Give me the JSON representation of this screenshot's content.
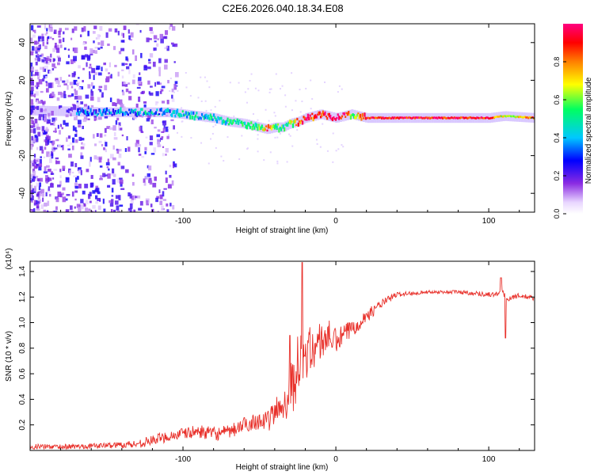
{
  "title": "C2E6.2026.040.18.34.E08",
  "colors": {
    "snr_line": "#e8302a",
    "frame": "#000000"
  },
  "chart_data": [
    {
      "type": "heatmap",
      "name": "spectrogram",
      "xlabel": "Height of straight line (km)",
      "ylabel": "Frequency (Hz)",
      "xlim": [
        -200,
        130
      ],
      "ylim": [
        -50,
        50
      ],
      "xticks": [
        -100,
        0,
        100
      ],
      "xtick_labels": [
        "-100",
        "0",
        "100"
      ],
      "yticks": [
        -40,
        -20,
        0,
        20,
        40
      ],
      "ytick_labels": [
        "-40",
        "-20",
        "0",
        "20",
        "40"
      ],
      "colorbar": {
        "label": "Normalized spectral amplitude",
        "range": [
          0,
          1
        ],
        "ticks": [
          0,
          0.2,
          0.4,
          0.6,
          0.8
        ],
        "tick_labels": [
          "0.0",
          "0.2",
          "0.4",
          "0.6",
          "0.8"
        ],
        "colormap": [
          "#ffffff",
          "#8a2be2",
          "#0000ff",
          "#00c8ff",
          "#00ff60",
          "#ffff00",
          "#ff8000",
          "#ff0000",
          "#ff0080"
        ]
      },
      "ridge": {
        "x": [
          -200,
          -150,
          -130,
          -110,
          -100,
          -90,
          -80,
          -70,
          -60,
          -50,
          -45,
          -40,
          -35,
          -30,
          -25,
          -20,
          -15,
          -10,
          -5,
          0,
          5,
          10,
          15,
          20,
          40,
          60,
          80,
          100,
          110,
          130
        ],
        "freq": [
          4,
          3,
          3,
          3,
          2,
          1,
          0,
          -2,
          -3,
          -5,
          -6,
          -5,
          -5,
          -3,
          -2,
          0,
          1,
          2,
          1,
          0,
          1,
          2,
          1,
          0,
          0,
          0,
          0,
          0,
          1,
          0
        ],
        "amplitude": [
          0.3,
          0.35,
          0.4,
          0.4,
          0.45,
          0.45,
          0.45,
          0.5,
          0.5,
          0.55,
          0.9,
          0.6,
          0.5,
          0.6,
          0.8,
          0.9,
          0.85,
          0.9,
          0.95,
          0.95,
          0.95,
          0.6,
          0.8,
          0.9,
          0.92,
          0.92,
          0.92,
          0.9,
          0.6,
          0.85
        ]
      }
    },
    {
      "type": "line",
      "name": "snr",
      "xlabel": "Height of straight line (km)",
      "ylabel": "SNR (10 * v/v)",
      "multiplier_label": "(x10⁴)",
      "xlim": [
        -200,
        130
      ],
      "ylim": [
        0,
        1.48
      ],
      "xticks": [
        -100,
        0,
        100
      ],
      "xtick_labels": [
        "-100",
        "0",
        "100"
      ],
      "yticks": [
        0.2,
        0.4,
        0.6,
        0.8,
        1.0,
        1.2,
        1.4
      ],
      "ytick_labels": [
        "0.2",
        "0.4",
        "0.6",
        "0.8",
        "1.0",
        "1.2",
        "1.4"
      ],
      "envelope": {
        "x": [
          -200,
          -170,
          -150,
          -130,
          -120,
          -110,
          -100,
          -90,
          -80,
          -70,
          -60,
          -50,
          -45,
          -40,
          -35,
          -30,
          -25,
          -20,
          -15,
          -10,
          -5,
          0,
          10,
          20,
          30,
          40,
          50,
          60,
          70,
          80,
          90,
          100,
          105,
          108,
          110,
          112,
          115,
          120,
          130
        ],
        "y": [
          0.03,
          0.03,
          0.04,
          0.05,
          0.08,
          0.11,
          0.13,
          0.15,
          0.13,
          0.14,
          0.2,
          0.24,
          0.22,
          0.3,
          0.35,
          0.45,
          0.65,
          0.75,
          0.8,
          0.85,
          0.9,
          0.85,
          0.95,
          1.05,
          1.15,
          1.22,
          1.23,
          1.24,
          1.24,
          1.24,
          1.23,
          1.22,
          1.22,
          1.25,
          1.22,
          1.18,
          1.2,
          1.21,
          1.19
        ]
      },
      "noise": {
        "x": [
          -200,
          -150,
          -120,
          -90,
          -60,
          -45,
          -35,
          -30,
          -25,
          -20,
          -10,
          0,
          20,
          40,
          60,
          100,
          130
        ],
        "amp": [
          0.02,
          0.02,
          0.04,
          0.05,
          0.06,
          0.08,
          0.14,
          0.22,
          0.25,
          0.2,
          0.16,
          0.1,
          0.05,
          0.02,
          0.012,
          0.02,
          0.02
        ]
      },
      "spikes": [
        {
          "x": -22,
          "y": 1.47
        },
        {
          "x": -30,
          "y": 0.9
        },
        {
          "x": 108,
          "y": 1.35
        },
        {
          "x": 111,
          "y": 0.88
        }
      ]
    }
  ]
}
